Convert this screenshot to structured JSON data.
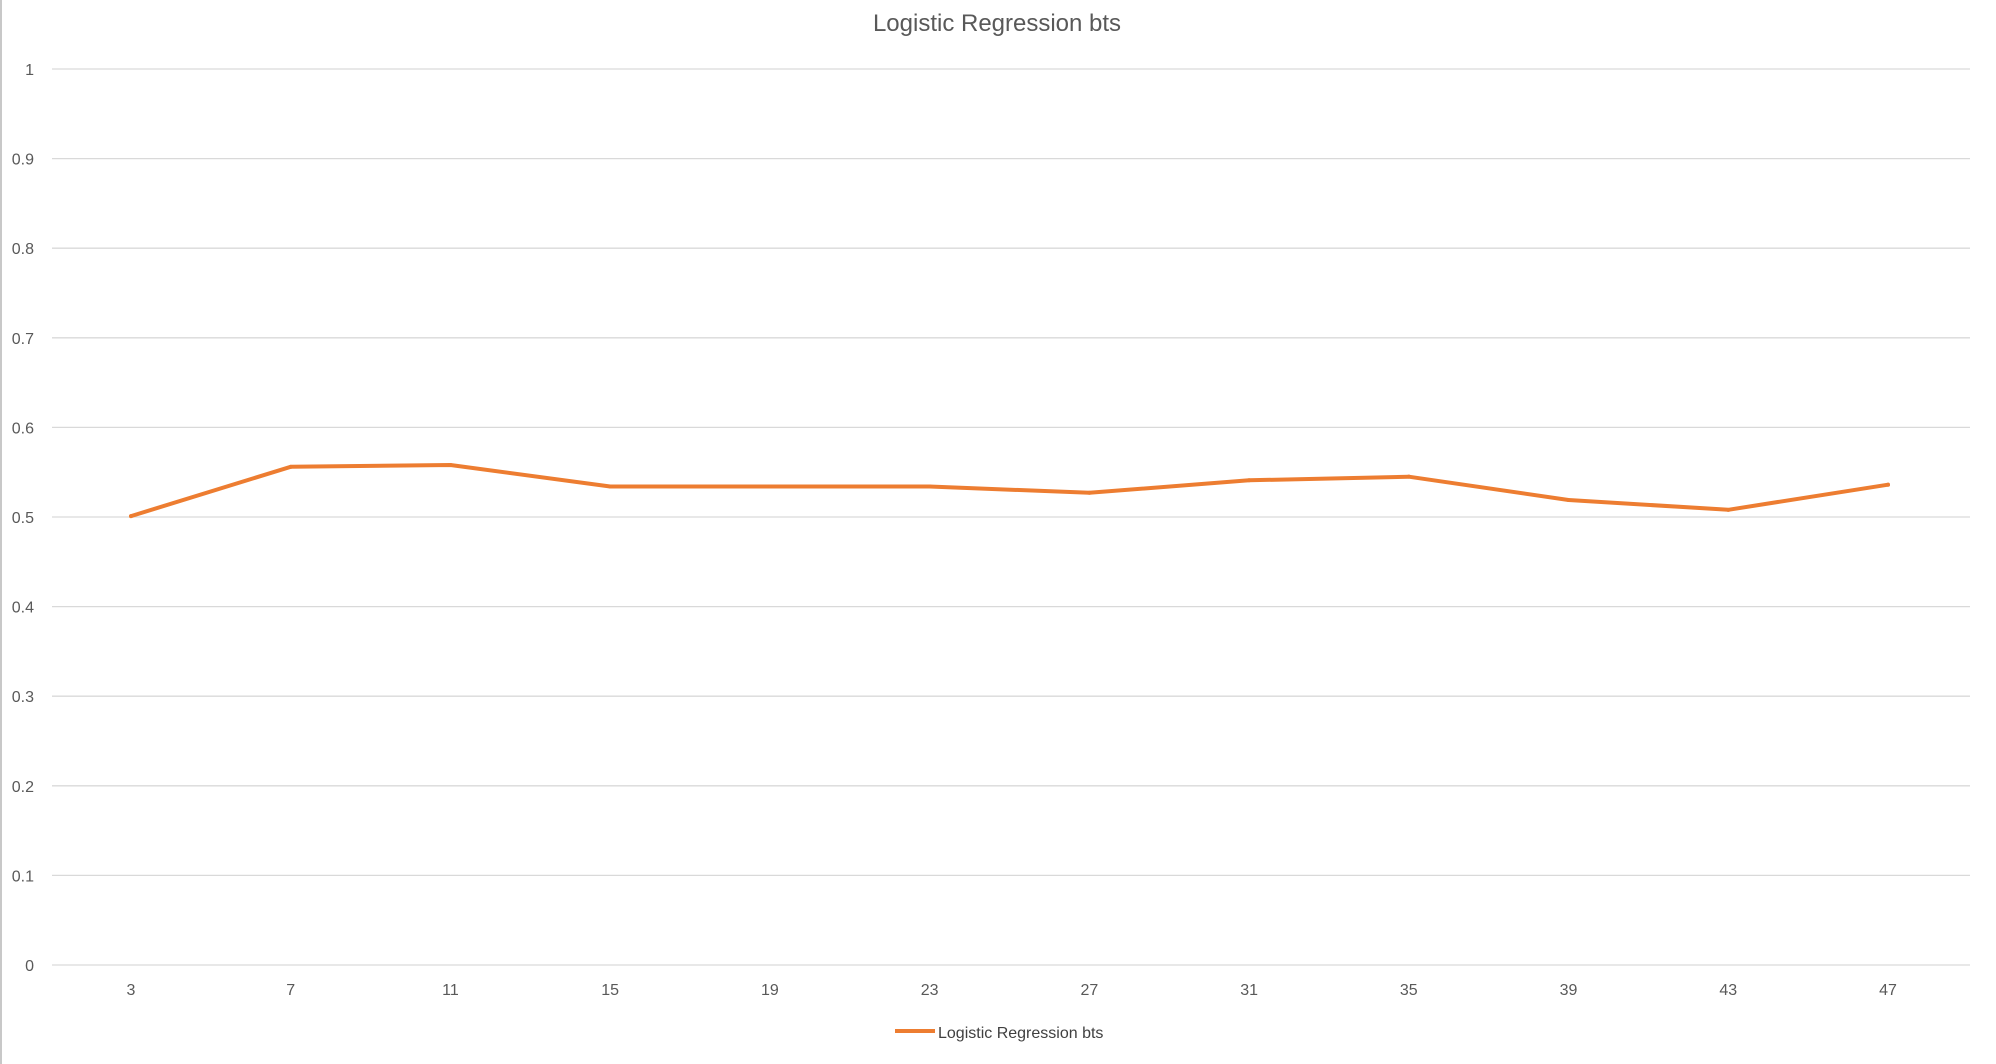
{
  "chart_data": {
    "type": "line",
    "title": "Logistic Regression  bts",
    "xlabel": "",
    "ylabel": "",
    "categories": [
      "3",
      "7",
      "11",
      "15",
      "19",
      "23",
      "27",
      "31",
      "35",
      "39",
      "43",
      "47"
    ],
    "series": [
      {
        "name": "Logistic Regression  bts",
        "color": "#ed7d31",
        "values": [
          0.501,
          0.556,
          0.558,
          0.534,
          0.534,
          0.534,
          0.527,
          0.541,
          0.545,
          0.519,
          0.508,
          0.536
        ]
      }
    ],
    "ylim": [
      0,
      1
    ],
    "yticks": [
      "0",
      "0.1",
      "0.2",
      "0.3",
      "0.4",
      "0.5",
      "0.6",
      "0.7",
      "0.8",
      "0.9",
      "1"
    ],
    "grid": true,
    "legend_position": "bottom-center"
  }
}
